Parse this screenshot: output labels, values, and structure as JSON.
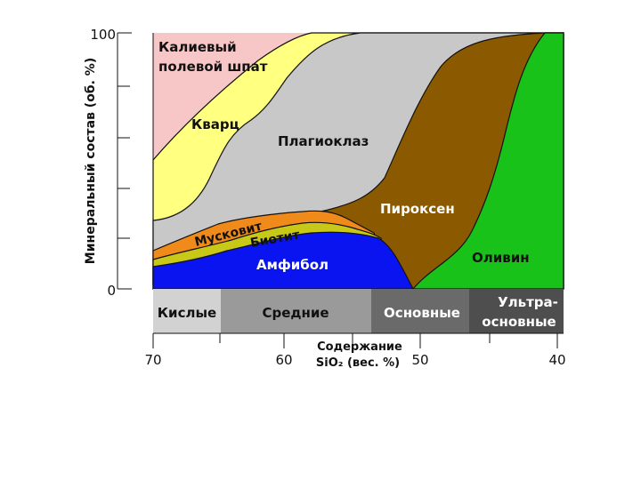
{
  "chart_data": {
    "type": "area",
    "title": "",
    "ylabel": "Минеральный состав (об. %)",
    "xlabel_line1": "Содержание",
    "xlabel_line2": "SiO₂ (вес. %)",
    "xlim": [
      70,
      40
    ],
    "ylim": [
      0,
      100
    ],
    "x_ticks": [
      "70",
      "60",
      "50",
      "40"
    ],
    "y_ticks": [
      "100",
      "0"
    ],
    "minerals": [
      {
        "name": "Калиевый полевой шпат",
        "line1": "Калиевый",
        "line2": "полевой шпат",
        "color": "#f7c6c6"
      },
      {
        "name": "Кварц",
        "color": "#ffff80"
      },
      {
        "name": "Плагиоклаз",
        "color": "#c8c8c8"
      },
      {
        "name": "Пироксен",
        "color": "#8b5a00"
      },
      {
        "name": "Оливин",
        "color": "#19c219"
      },
      {
        "name": "Мусковит",
        "color": "#f08a1a"
      },
      {
        "name": "Биотит",
        "color": "#c8c818"
      },
      {
        "name": "Амфибол",
        "color": "#0a14f0"
      }
    ],
    "rock_classes": [
      {
        "name": "Кислые",
        "range": [
          70,
          65
        ],
        "color": "#d2d2d2"
      },
      {
        "name": "Средние",
        "range": [
          65,
          52
        ],
        "color": "#9a9a9a"
      },
      {
        "name": "Основные",
        "range": [
          52,
          45
        ],
        "color": "#6a6a6a"
      },
      {
        "name": "Ультра-основные",
        "line1": "Ультра-",
        "line2": "основные",
        "range": [
          45,
          40
        ],
        "color": "#4e4e4e"
      }
    ]
  }
}
